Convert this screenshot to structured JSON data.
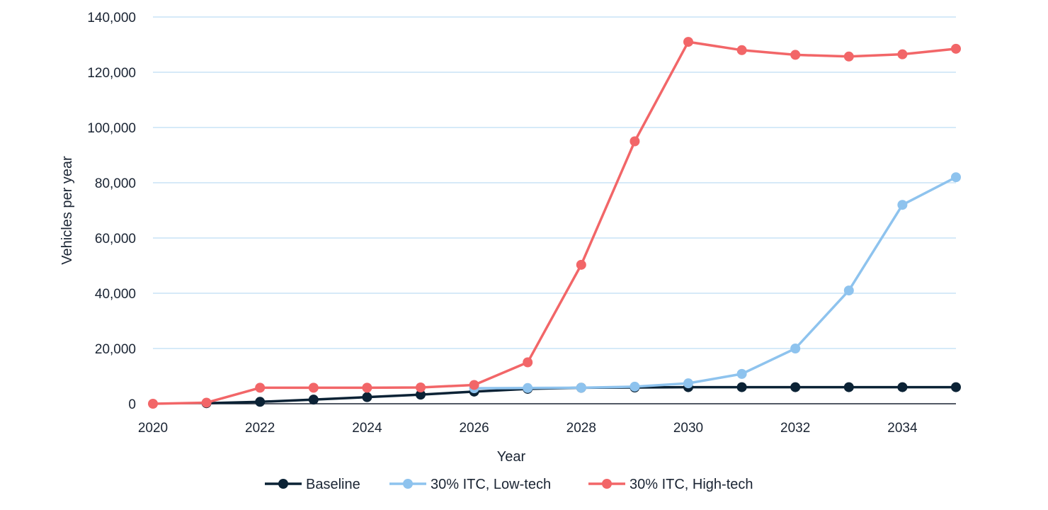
{
  "chart_data": {
    "type": "line",
    "title": "",
    "xlabel": "Year",
    "ylabel": "Vehicles per year",
    "xlim": [
      2020,
      2035
    ],
    "ylim": [
      0,
      140000
    ],
    "x_ticks": [
      2020,
      2022,
      2024,
      2026,
      2028,
      2030,
      2032,
      2034
    ],
    "y_ticks": [
      0,
      20000,
      40000,
      60000,
      80000,
      100000,
      120000,
      140000
    ],
    "y_tick_labels": [
      "0",
      "20,000",
      "40,000",
      "60,000",
      "80,000",
      "100,000",
      "120,000",
      "140,000"
    ],
    "grid": "horizontal",
    "legend_position": "bottom",
    "x": [
      2020,
      2021,
      2022,
      2023,
      2024,
      2025,
      2026,
      2027,
      2028,
      2029,
      2030,
      2031,
      2032,
      2033,
      2034,
      2035
    ],
    "series": [
      {
        "name": "Baseline",
        "color": "#0b2235",
        "values": [
          null,
          200,
          700,
          1500,
          2400,
          3300,
          4400,
          5400,
          5800,
          5900,
          6000,
          6000,
          6000,
          6000,
          6000,
          6000
        ]
      },
      {
        "name": "30% ITC, Low-tech",
        "color": "#8ec3ee",
        "values": [
          null,
          null,
          null,
          null,
          null,
          null,
          5600,
          5700,
          5800,
          6200,
          7400,
          10800,
          20000,
          41000,
          72000,
          82000
        ]
      },
      {
        "name": "30% ITC, High-tech",
        "color": "#f26668",
        "values": [
          0,
          400,
          5800,
          5800,
          5800,
          5900,
          6800,
          15000,
          50300,
          95000,
          131000,
          128000,
          126300,
          125700,
          126500,
          128500
        ]
      }
    ]
  }
}
